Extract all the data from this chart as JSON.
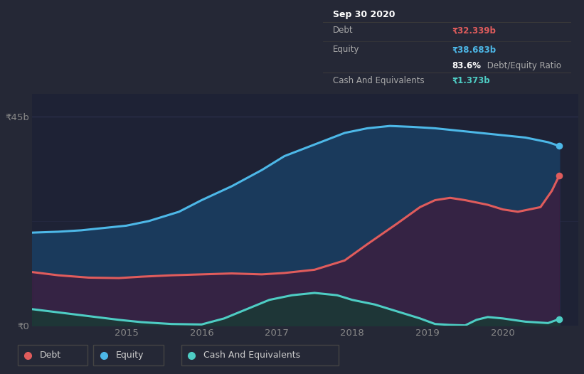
{
  "background_color": "#252836",
  "plot_bg_color": "#1e2235",
  "title": "Sep 30 2020",
  "ylabel_top": "₹45b",
  "ylabel_bottom": "₹0",
  "x_labels": [
    "2015",
    "2016",
    "2017",
    "2018",
    "2019",
    "2020"
  ],
  "x_tick_pos": [
    2015.0,
    2016.0,
    2017.0,
    2018.0,
    2019.0,
    2020.0
  ],
  "tooltip": {
    "date": "Sep 30 2020",
    "debt_label": "Debt",
    "debt_value": "₹32.339b",
    "equity_label": "Equity",
    "equity_value": "₹38.683b",
    "ratio_bold": "83.6%",
    "ratio_rest": " Debt/Equity Ratio",
    "cash_label": "Cash And Equivalents",
    "cash_value": "₹1.373b",
    "bg_color": "#080808",
    "border_color": "#3a3a3a",
    "text_color": "#aaaaaa",
    "debt_color": "#e05c5c",
    "equity_color": "#4db8e8",
    "ratio_bold_color": "#ffffff",
    "ratio_rest_color": "#aaaaaa",
    "cash_color": "#4ecdc4"
  },
  "legend": [
    {
      "label": "Debt",
      "color": "#e05c5c"
    },
    {
      "label": "Equity",
      "color": "#4db8e8"
    },
    {
      "label": "Cash And Equivalents",
      "color": "#4ecdc4"
    }
  ],
  "equity_x": [
    2013.75,
    2014.1,
    2014.4,
    2014.7,
    2015.0,
    2015.3,
    2015.7,
    2016.0,
    2016.4,
    2016.8,
    2017.1,
    2017.5,
    2017.9,
    2018.2,
    2018.5,
    2018.8,
    2019.1,
    2019.4,
    2019.7,
    2020.0,
    2020.3,
    2020.6,
    2020.75
  ],
  "equity_y": [
    20.0,
    20.2,
    20.5,
    21.0,
    21.5,
    22.5,
    24.5,
    27.0,
    30.0,
    33.5,
    36.5,
    39.0,
    41.5,
    42.5,
    43.0,
    42.8,
    42.5,
    42.0,
    41.5,
    41.0,
    40.5,
    39.5,
    38.683
  ],
  "equity_color": "#4db8e8",
  "equity_fill": "#1a3a5c",
  "debt_x": [
    2013.75,
    2014.1,
    2014.5,
    2014.9,
    2015.2,
    2015.6,
    2016.0,
    2016.4,
    2016.8,
    2017.1,
    2017.5,
    2017.9,
    2018.2,
    2018.6,
    2018.9,
    2019.1,
    2019.3,
    2019.5,
    2019.65,
    2019.8,
    2020.0,
    2020.2,
    2020.5,
    2020.65,
    2020.75
  ],
  "debt_y": [
    11.5,
    10.8,
    10.3,
    10.2,
    10.5,
    10.8,
    11.0,
    11.2,
    11.0,
    11.3,
    12.0,
    14.0,
    17.5,
    22.0,
    25.5,
    27.0,
    27.5,
    27.0,
    26.5,
    26.0,
    25.0,
    24.5,
    25.5,
    29.0,
    32.339
  ],
  "debt_color": "#e05c5c",
  "debt_fill": "#3a1f40",
  "cash_x": [
    2013.75,
    2014.1,
    2014.5,
    2014.9,
    2015.2,
    2015.6,
    2016.0,
    2016.3,
    2016.6,
    2016.9,
    2017.2,
    2017.5,
    2017.8,
    2018.0,
    2018.3,
    2018.6,
    2018.9,
    2019.1,
    2019.3,
    2019.5,
    2019.65,
    2019.8,
    2020.0,
    2020.3,
    2020.6,
    2020.75
  ],
  "cash_y": [
    3.5,
    2.8,
    2.0,
    1.2,
    0.7,
    0.3,
    0.2,
    1.5,
    3.5,
    5.5,
    6.5,
    7.0,
    6.5,
    5.5,
    4.5,
    3.0,
    1.5,
    0.3,
    0.1,
    0.0,
    1.2,
    1.8,
    1.5,
    0.8,
    0.5,
    1.373
  ],
  "cash_color": "#4ecdc4",
  "cash_fill": "#1a3a35",
  "ylim": [
    0,
    50
  ],
  "xlim": [
    2013.75,
    2021.0
  ],
  "grid_color": "#2e3350",
  "line_width": 2.2
}
